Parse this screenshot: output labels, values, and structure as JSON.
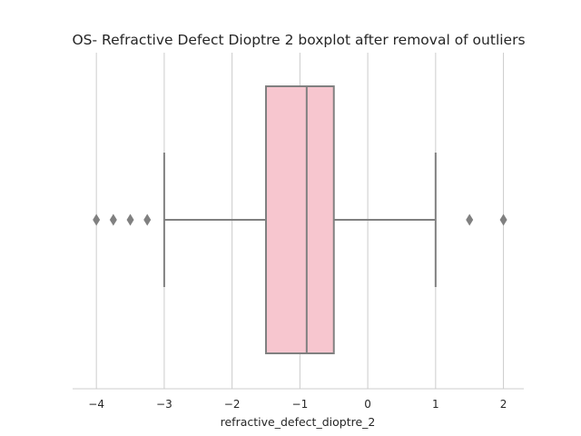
{
  "chart_data": {
    "type": "boxplot",
    "title": "OS- Refractive Defect Dioptre 2 boxplot after removal of outliers",
    "xlabel": "refractive_defect_dioptre_2",
    "ylabel": "",
    "xlim": [
      -4.35,
      2.3
    ],
    "xticks": [
      -4,
      -3,
      -2,
      -1,
      0,
      1,
      2
    ],
    "xtick_labels": [
      "−4",
      "−3",
      "−2",
      "−1",
      "0",
      "1",
      "2"
    ],
    "grid": "vertical",
    "orientation": "horizontal",
    "box": {
      "whisker_low": -3.0,
      "q1": -1.5,
      "median": -0.9,
      "q3": -0.5,
      "whisker_high": 1.0
    },
    "outliers": [
      -4.0,
      -3.75,
      -3.5,
      -3.25,
      1.5,
      2.0
    ],
    "colors": {
      "box_fill": "#f7c6cf",
      "line": "#808080",
      "grid": "#cccccc"
    }
  }
}
